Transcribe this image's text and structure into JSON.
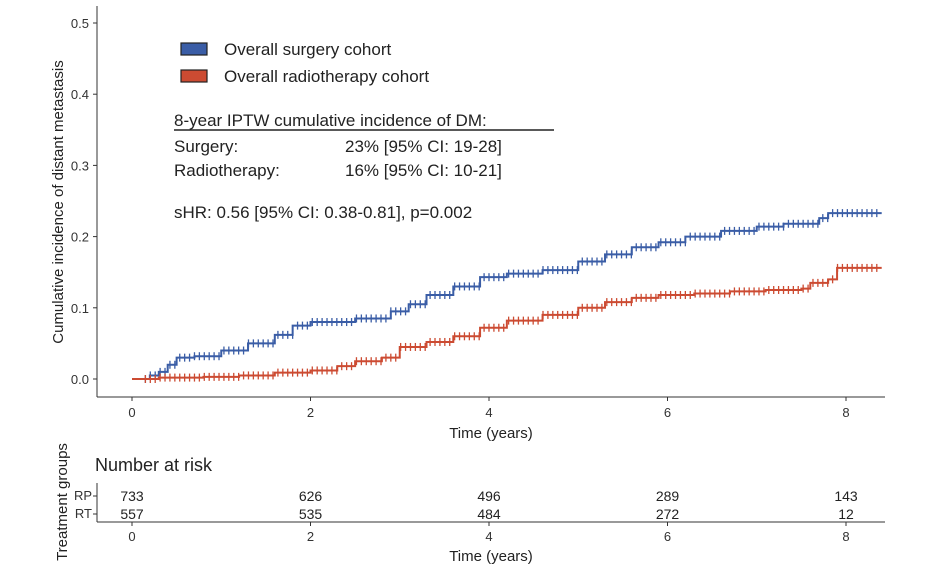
{
  "chart_data": [
    {
      "type": "line",
      "subtype": "step",
      "title": "",
      "xlabel": "Time (years)",
      "ylabel": "Cumulative incidence of distant metastasis",
      "xlim": [
        -0.4,
        8.4
      ],
      "ylim": [
        0,
        0.5
      ],
      "xticks": [
        "0",
        "2",
        "4",
        "6",
        "8"
      ],
      "yticks": [
        "0.0",
        "0.1",
        "0.2",
        "0.3",
        "0.4",
        "0.5"
      ],
      "grid": false,
      "legend_position": "top-left",
      "series": [
        {
          "name": "Overall surgery cohort",
          "color": "#3a5da6",
          "points": [
            [
              0,
              0
            ],
            [
              0.2,
              0.005
            ],
            [
              0.3,
              0.01
            ],
            [
              0.4,
              0.02
            ],
            [
              0.5,
              0.03
            ],
            [
              0.7,
              0.032
            ],
            [
              1.0,
              0.04
            ],
            [
              1.3,
              0.05
            ],
            [
              1.6,
              0.062
            ],
            [
              1.8,
              0.075
            ],
            [
              2.0,
              0.08
            ],
            [
              2.5,
              0.085
            ],
            [
              2.9,
              0.095
            ],
            [
              3.1,
              0.105
            ],
            [
              3.3,
              0.118
            ],
            [
              3.6,
              0.13
            ],
            [
              3.9,
              0.143
            ],
            [
              4.2,
              0.148
            ],
            [
              4.6,
              0.153
            ],
            [
              5.0,
              0.165
            ],
            [
              5.3,
              0.175
            ],
            [
              5.6,
              0.185
            ],
            [
              5.9,
              0.192
            ],
            [
              6.2,
              0.2
            ],
            [
              6.6,
              0.208
            ],
            [
              7.0,
              0.214
            ],
            [
              7.3,
              0.218
            ],
            [
              7.7,
              0.226
            ],
            [
              7.8,
              0.233
            ],
            [
              8.4,
              0.233
            ]
          ]
        },
        {
          "name": "Overall radiotherapy cohort",
          "color": "#cc4b32",
          "points": [
            [
              0,
              0
            ],
            [
              0.3,
              0.002
            ],
            [
              0.8,
              0.003
            ],
            [
              1.2,
              0.005
            ],
            [
              1.6,
              0.009
            ],
            [
              2.0,
              0.012
            ],
            [
              2.3,
              0.018
            ],
            [
              2.5,
              0.025
            ],
            [
              2.8,
              0.03
            ],
            [
              3.0,
              0.045
            ],
            [
              3.3,
              0.052
            ],
            [
              3.6,
              0.06
            ],
            [
              3.9,
              0.072
            ],
            [
              4.2,
              0.082
            ],
            [
              4.6,
              0.09
            ],
            [
              5.0,
              0.1
            ],
            [
              5.3,
              0.108
            ],
            [
              5.6,
              0.114
            ],
            [
              5.9,
              0.118
            ],
            [
              6.3,
              0.12
            ],
            [
              6.7,
              0.123
            ],
            [
              7.1,
              0.125
            ],
            [
              7.5,
              0.127
            ],
            [
              7.6,
              0.135
            ],
            [
              7.8,
              0.14
            ],
            [
              7.9,
              0.156
            ],
            [
              8.4,
              0.156
            ]
          ]
        }
      ],
      "annotation": {
        "heading": "8-year IPTW cumulative incidence of DM:",
        "rows": [
          {
            "label": "Surgery:",
            "value": "23% [95% CI: 19-28]"
          },
          {
            "label": "Radiotherapy:",
            "value": "16% [95% CI: 10-21]"
          }
        ],
        "shr": "sHR: 0.56 [95% CI: 0.38-0.81], p=0.002"
      }
    },
    {
      "type": "table",
      "title": "Number at risk",
      "ylabel": "Treatment groups",
      "xlabel": "Time (years)",
      "xticks": [
        "0",
        "2",
        "4",
        "6",
        "8"
      ],
      "rows": [
        {
          "label": "RP",
          "values": [
            "733",
            "626",
            "496",
            "289",
            "143"
          ]
        },
        {
          "label": "RT",
          "values": [
            "557",
            "535",
            "484",
            "272",
            "12"
          ]
        }
      ]
    }
  ]
}
